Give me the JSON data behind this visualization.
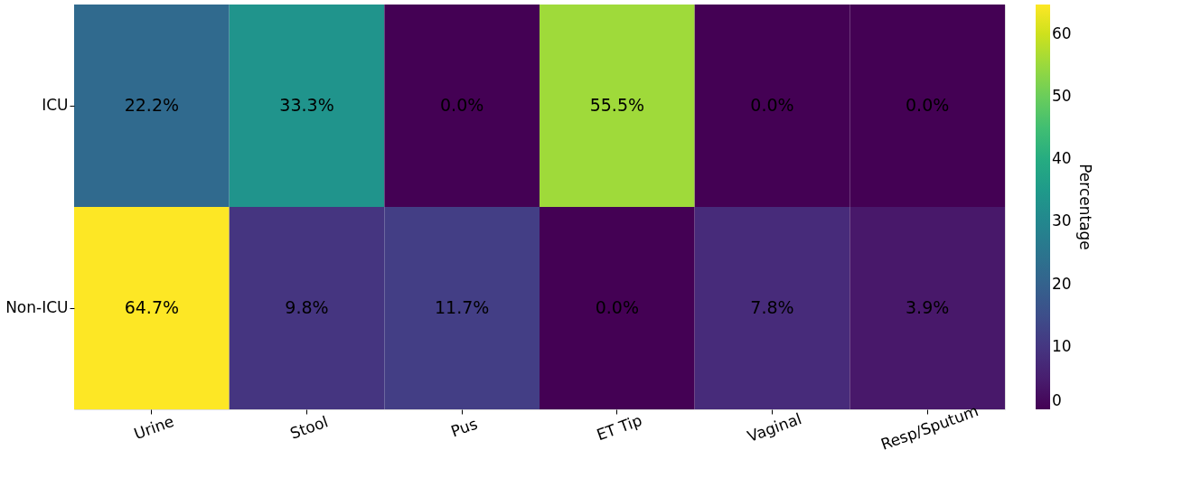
{
  "chart_data": {
    "type": "heatmap",
    "categories": [
      "Urine",
      "Stool",
      "Pus",
      "ET Tip",
      "Vaginal",
      "Resp/Sputum"
    ],
    "y_categories": [
      "ICU",
      "Non-ICU"
    ],
    "cells": [
      [
        22.2,
        33.3,
        0.0,
        55.5,
        0.0,
        0.0
      ],
      [
        64.7,
        9.8,
        11.7,
        0.0,
        7.8,
        3.9
      ]
    ],
    "cell_labels": [
      [
        "22.2%",
        "33.3%",
        "0.0%",
        "55.5%",
        "0.0%",
        "0.0%"
      ],
      [
        "64.7%",
        "9.8%",
        "11.7%",
        "0.0%",
        "7.8%",
        "3.9%"
      ]
    ],
    "clabel": "Percentage",
    "clim": [
      0,
      64.7
    ],
    "cticks": [
      0,
      10,
      20,
      30,
      40,
      50,
      60
    ]
  }
}
